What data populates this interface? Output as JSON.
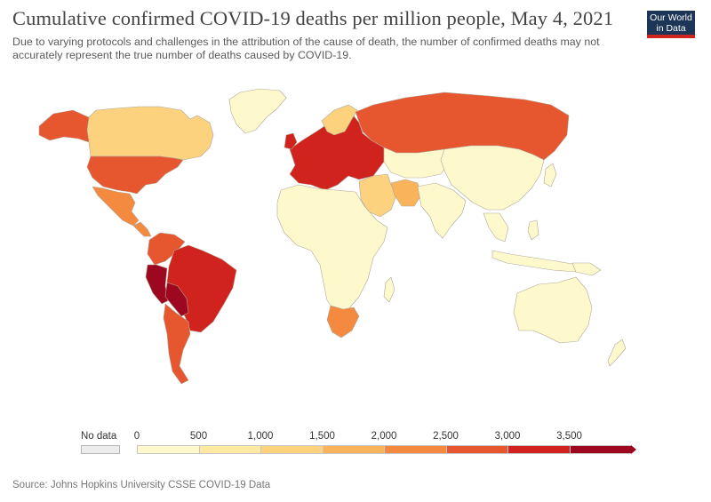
{
  "title": "Cumulative confirmed COVID-19 deaths per million people, May 4, 2021",
  "subtitle": "Due to varying protocols and challenges in the attribution of the cause of death, the number of confirmed deaths may not accurately represent the true number of deaths caused by COVID-19.",
  "logo": {
    "line1": "Our World",
    "line2": "in Data"
  },
  "source": "Source: Johns Hopkins University CSSE COVID-19 Data",
  "legend": {
    "no_data_label": "No data",
    "no_data_color": "#ececec",
    "ticks": [
      "0",
      "500",
      "1,000",
      "1,500",
      "2,000",
      "2,500",
      "3,000",
      "3,500"
    ],
    "colors": [
      "#fef9cc",
      "#fde9a1",
      "#fcd27e",
      "#f9b35b",
      "#f38a40",
      "#e6572f",
      "#d1231d",
      "#9e0720"
    ]
  },
  "regions": [
    {
      "name": "Canada",
      "color": "#fcd27e"
    },
    {
      "name": "United States",
      "color": "#e6572f"
    },
    {
      "name": "Mexico",
      "color": "#f38a40"
    },
    {
      "name": "Brazil",
      "color": "#d1231d"
    },
    {
      "name": "Peru",
      "color": "#9e0720"
    },
    {
      "name": "Colombia",
      "color": "#e6572f"
    },
    {
      "name": "Argentina",
      "color": "#e6572f"
    },
    {
      "name": "Greenland",
      "color": "#fef9cc"
    },
    {
      "name": "Russia",
      "color": "#e6572f"
    },
    {
      "name": "Europe",
      "color": "#d1231d"
    },
    {
      "name": "Africa",
      "color": "#fef9cc"
    },
    {
      "name": "South Africa",
      "color": "#f38a40"
    },
    {
      "name": "Middle East",
      "color": "#fcd27e"
    },
    {
      "name": "Iran",
      "color": "#f9b35b"
    },
    {
      "name": "China",
      "color": "#fef9cc"
    },
    {
      "name": "India",
      "color": "#fef9cc"
    },
    {
      "name": "Australia",
      "color": "#fef9cc"
    },
    {
      "name": "Southeast Asia",
      "color": "#fef9cc"
    }
  ]
}
